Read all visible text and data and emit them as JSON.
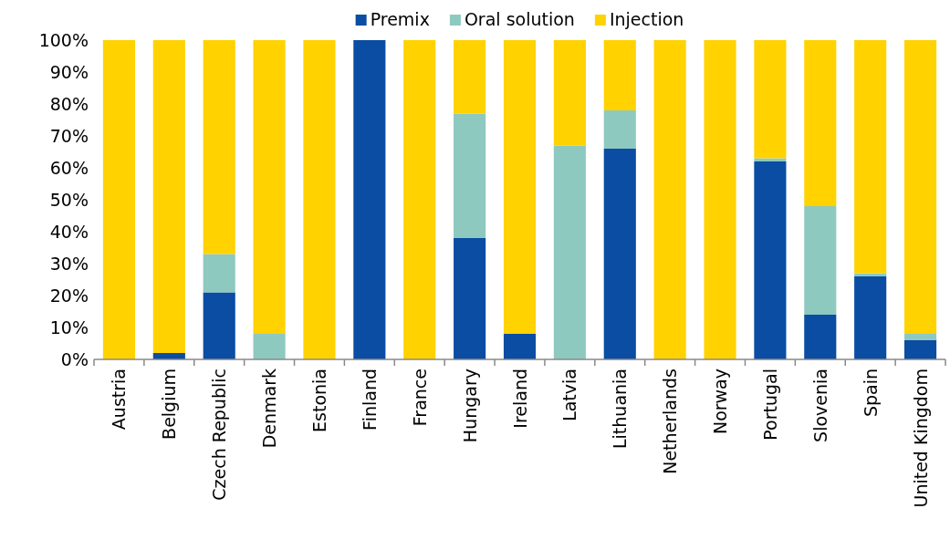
{
  "chart_data": {
    "type": "bar",
    "stacked": true,
    "legend": "top",
    "grid": false,
    "categories": [
      "Austria",
      "Belgium",
      "Czech Republic",
      "Denmark",
      "Estonia",
      "Finland",
      "France",
      "Hungary",
      "Ireland",
      "Latvia",
      "Lithuania",
      "Netherlands",
      "Norway",
      "Portugal",
      "Slovenia",
      "Spain",
      "United Kingdom"
    ],
    "series": [
      {
        "name": "Premix",
        "color": "#0a4da2",
        "values": [
          0,
          2,
          21,
          0,
          0,
          100,
          0,
          38,
          8,
          0,
          66,
          0,
          0,
          62,
          14,
          26,
          6
        ]
      },
      {
        "name": "Oral solution",
        "color": "#8ec9c0",
        "values": [
          0,
          0,
          12,
          8,
          0,
          0,
          0,
          39,
          0,
          67,
          12,
          0,
          0,
          1,
          34,
          1,
          2
        ]
      },
      {
        "name": "Injection",
        "color": "#ffd200",
        "values": [
          100,
          98,
          67,
          92,
          100,
          0,
          100,
          23,
          92,
          33,
          22,
          100,
          100,
          37,
          52,
          73,
          92
        ]
      }
    ],
    "ylim": [
      0,
      100
    ],
    "yticks": [
      {
        "value": 0,
        "label": "0%"
      },
      {
        "value": 10,
        "label": "10%"
      },
      {
        "value": 20,
        "label": "20%"
      },
      {
        "value": 30,
        "label": "30%"
      },
      {
        "value": 40,
        "label": "40%"
      },
      {
        "value": 50,
        "label": "50%"
      },
      {
        "value": 60,
        "label": "60%"
      },
      {
        "value": 70,
        "label": "70%"
      },
      {
        "value": 80,
        "label": "80%"
      },
      {
        "value": 90,
        "label": "90%"
      },
      {
        "value": 100,
        "label": "100%"
      }
    ]
  }
}
